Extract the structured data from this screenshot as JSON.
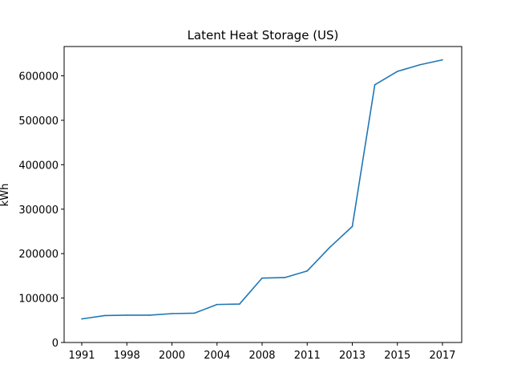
{
  "chart_data": {
    "type": "line",
    "title": "Latent Heat Storage (US)",
    "xlabel": "",
    "ylabel": "kWh",
    "x_tick_labels": [
      "1991",
      "1998",
      "2000",
      "2004",
      "2008",
      "2011",
      "2013",
      "2015",
      "2017"
    ],
    "y_tick_labels": [
      "0",
      "100000",
      "200000",
      "300000",
      "400000",
      "500000",
      "600000"
    ],
    "y_ticks": [
      0,
      100000,
      200000,
      300000,
      400000,
      500000,
      600000
    ],
    "ylim": [
      0,
      666000
    ],
    "grid": false,
    "legend": "none",
    "series": [
      {
        "color": "#1f77b4",
        "points": [
          {
            "x": "1991",
            "y": 53000
          },
          {
            "x": "",
            "y": 60500
          },
          {
            "x": "1998",
            "y": 61500
          },
          {
            "x": "",
            "y": 61500
          },
          {
            "x": "2000",
            "y": 65000
          },
          {
            "x": "",
            "y": 66000
          },
          {
            "x": "2004",
            "y": 85500
          },
          {
            "x": "",
            "y": 86500
          },
          {
            "x": "2008",
            "y": 145000
          },
          {
            "x": "",
            "y": 146000
          },
          {
            "x": "2011",
            "y": 161000
          },
          {
            "x": "",
            "y": 214000
          },
          {
            "x": "2013",
            "y": 261000
          },
          {
            "x": "",
            "y": 580000
          },
          {
            "x": "2015",
            "y": 610000
          },
          {
            "x": "",
            "y": 625000
          },
          {
            "x": "2017",
            "y": 636000
          }
        ]
      }
    ]
  }
}
